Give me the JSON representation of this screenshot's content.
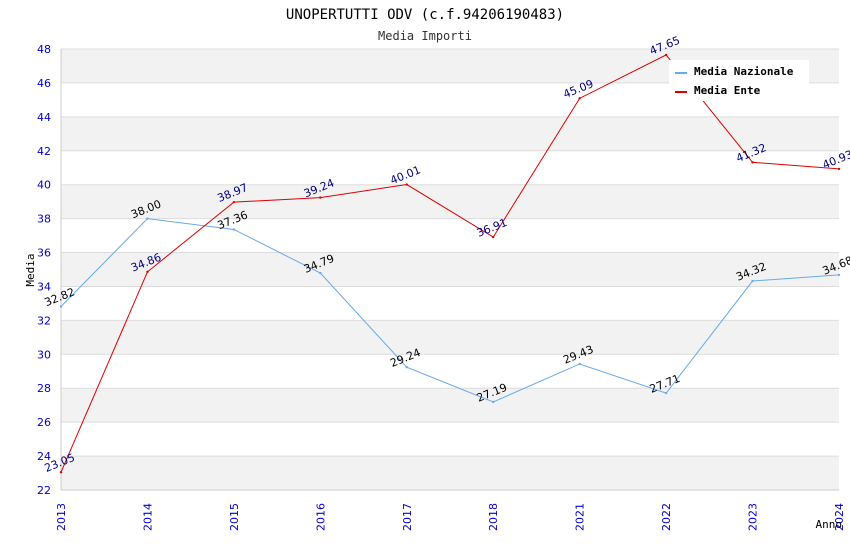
{
  "chart_data": {
    "type": "line",
    "title": "UNOPERTUTTI ODV (c.f.94206190483)",
    "subtitle": "Media Importi",
    "xlabel": "Anno",
    "ylabel": "Media",
    "categories": [
      "2013",
      "2014",
      "2015",
      "2016",
      "2017",
      "2018",
      "2021",
      "2022",
      "2023",
      "2024"
    ],
    "ylim": [
      22,
      48
    ],
    "yticks": [
      "22",
      "24",
      "26",
      "28",
      "30",
      "32",
      "34",
      "36",
      "38",
      "40",
      "42",
      "44",
      "46",
      "48"
    ],
    "grid": true,
    "legend_position": "top-right",
    "series": [
      {
        "name": "Media Nazionale",
        "color": "#66aaee",
        "label_color": "#000000",
        "values": [
          32.82,
          38.0,
          37.36,
          34.79,
          29.24,
          27.19,
          29.43,
          27.71,
          34.32,
          34.68
        ],
        "labels": [
          "32.82",
          "38.00",
          "37.36",
          "34.79",
          "29.24",
          "27.19",
          "29.43",
          "27.71",
          "34.32",
          "34.68"
        ]
      },
      {
        "name": "Media Ente",
        "color": "#dd0000",
        "label_color": "#000080",
        "values": [
          23.05,
          34.86,
          38.97,
          39.24,
          40.01,
          36.91,
          45.09,
          47.65,
          41.32,
          40.93
        ],
        "labels": [
          "23.05",
          "34.86",
          "38.97",
          "39.24",
          "40.01",
          "36.91",
          "45.09",
          "47.65",
          "41.32",
          "40.93"
        ]
      }
    ],
    "colors": {
      "tick_color": "#0000cc",
      "band_color": "#f2f2f2",
      "grid_color": "#dddddd"
    }
  }
}
